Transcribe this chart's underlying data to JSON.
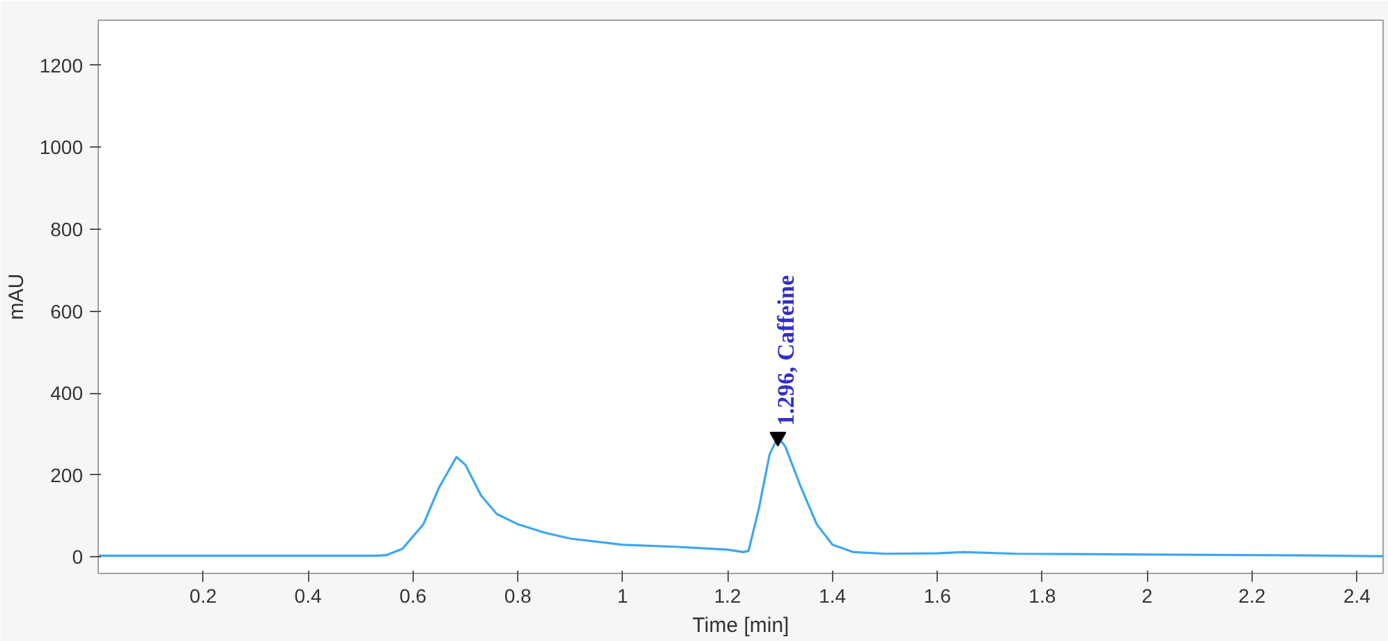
{
  "chart_data": {
    "type": "line",
    "xlabel": "Time [min]",
    "ylabel": "mAU",
    "xlim": [
      0,
      2.45
    ],
    "ylim": [
      -40,
      1310
    ],
    "xticks": [
      0.2,
      0.4,
      0.6,
      0.8,
      1,
      1.2,
      1.4,
      1.6,
      1.8,
      2,
      2.2,
      2.4
    ],
    "yticks": [
      0,
      200,
      400,
      600,
      800,
      1000,
      1200
    ],
    "grid": false,
    "series": [
      {
        "color": "#3ea6f0",
        "x": [
          0,
          0.3,
          0.53,
          0.55,
          0.58,
          0.62,
          0.65,
          0.683,
          0.7,
          0.73,
          0.76,
          0.8,
          0.85,
          0.9,
          1.0,
          1.1,
          1.2,
          1.23,
          1.24,
          1.26,
          1.28,
          1.296,
          1.31,
          1.34,
          1.37,
          1.4,
          1.44,
          1.5,
          1.6,
          1.65,
          1.75,
          2.0,
          2.3,
          2.45
        ],
        "values": [
          3,
          3,
          3,
          5,
          20,
          80,
          170,
          244,
          225,
          150,
          105,
          80,
          60,
          45,
          30,
          25,
          18,
          12,
          15,
          120,
          250,
          293,
          270,
          170,
          80,
          30,
          12,
          8,
          9,
          12,
          8,
          6,
          4,
          2
        ]
      }
    ],
    "annotations": [
      {
        "text": "1.296, Caffeine",
        "x": 1.296,
        "y": 293
      }
    ]
  }
}
